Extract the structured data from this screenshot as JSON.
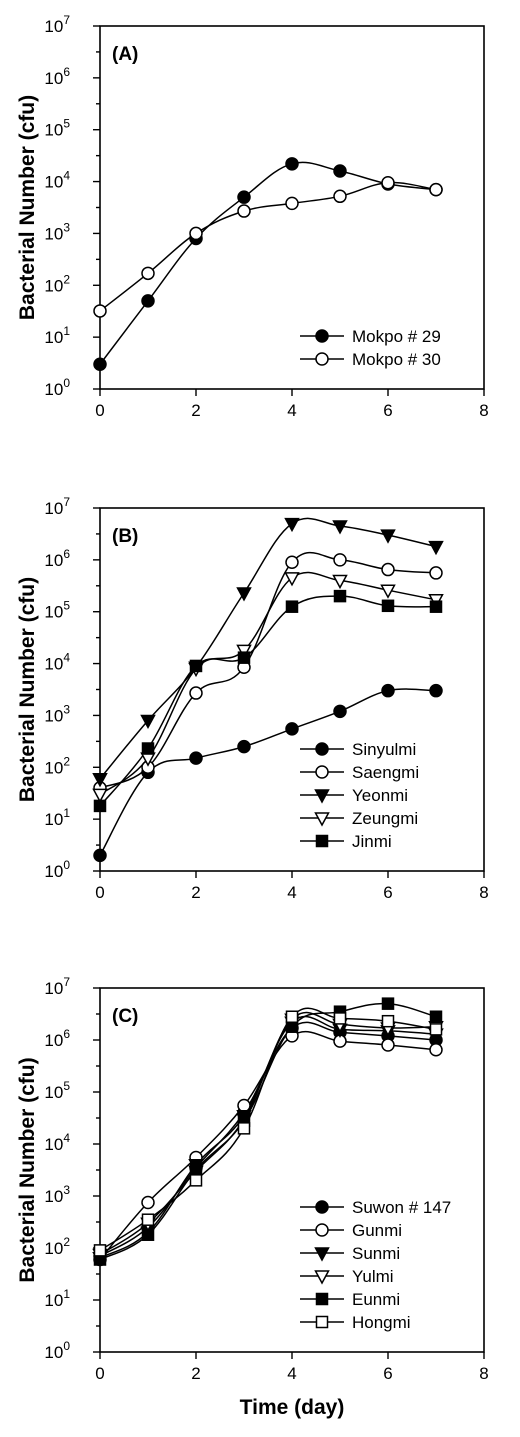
{
  "chart_data": [
    {
      "type": "line",
      "panel_label": "(A)",
      "ylabel": "Bacterial Number (cfu)",
      "xlabel": "",
      "y_scale": "log",
      "xlim": [
        0,
        8
      ],
      "ylim": [
        1,
        10000000
      ],
      "x_ticks": [
        "0",
        "2",
        "4",
        "6",
        "8"
      ],
      "y_tick_exponents": [
        "0",
        "1",
        "2",
        "3",
        "4",
        "5",
        "6",
        "7"
      ],
      "y_tick_base": "10",
      "x": [
        0,
        1,
        2,
        3,
        4,
        5,
        6,
        7
      ],
      "legend_position": "lower-right",
      "series": [
        {
          "name": "Mokpo # 29",
          "marker": "filled-circle",
          "values": [
            3,
            50,
            800,
            5000,
            22000,
            16000,
            9000,
            7000
          ]
        },
        {
          "name": "Mokpo # 30",
          "marker": "open-circle",
          "values": [
            32,
            170,
            1000,
            2700,
            3800,
            5200,
            9500,
            7000
          ]
        }
      ]
    },
    {
      "type": "line",
      "panel_label": "(B)",
      "ylabel": "Bacterial Number (cfu)",
      "xlabel": "",
      "y_scale": "log",
      "xlim": [
        0,
        8
      ],
      "ylim": [
        1,
        10000000
      ],
      "x_ticks": [
        "0",
        "2",
        "4",
        "6",
        "8"
      ],
      "y_tick_exponents": [
        "0",
        "1",
        "2",
        "3",
        "4",
        "5",
        "6",
        "7"
      ],
      "y_tick_base": "10",
      "x": [
        0,
        1,
        2,
        3,
        4,
        5,
        6,
        7
      ],
      "legend_position": "lower-right",
      "series": [
        {
          "name": "Sinyulmi",
          "marker": "filled-circle",
          "values": [
            2,
            80,
            150,
            250,
            550,
            1200,
            3000,
            3000
          ]
        },
        {
          "name": "Saengmi",
          "marker": "open-circle",
          "values": [
            40,
            100,
            2700,
            8500,
            900000,
            1000000,
            650000,
            560000
          ]
        },
        {
          "name": "Yeonmi",
          "marker": "filled-triangle-down",
          "values": [
            60,
            800,
            8500,
            230000,
            5000000,
            4500000,
            3000000,
            1800000
          ]
        },
        {
          "name": "Zeungmi",
          "marker": "open-triangle-down",
          "values": [
            30,
            150,
            8000,
            18000,
            450000,
            400000,
            260000,
            170000
          ]
        },
        {
          "name": "Jinmi",
          "marker": "filled-square",
          "values": [
            18,
            230,
            9000,
            13000,
            125000,
            200000,
            130000,
            125000
          ]
        }
      ]
    },
    {
      "type": "line",
      "panel_label": "(C)",
      "ylabel": "Bacterial Number (cfu)",
      "xlabel": "Time (day)",
      "y_scale": "log",
      "xlim": [
        0,
        8
      ],
      "ylim": [
        1,
        10000000
      ],
      "x_ticks": [
        "0",
        "2",
        "4",
        "6",
        "8"
      ],
      "y_tick_exponents": [
        "0",
        "1",
        "2",
        "3",
        "4",
        "5",
        "6",
        "7"
      ],
      "y_tick_base": "10",
      "x": [
        0,
        1,
        2,
        3,
        4,
        5,
        6,
        7
      ],
      "legend_position": "lower-right",
      "series": [
        {
          "name": "Suwon # 147",
          "marker": "filled-circle",
          "values": [
            70,
            250,
            3500,
            40000,
            1700000,
            1400000,
            1200000,
            1000000
          ]
        },
        {
          "name": "Gunmi",
          "marker": "open-circle",
          "values": [
            60,
            750,
            5500,
            55000,
            1200000,
            950000,
            800000,
            650000
          ]
        },
        {
          "name": "Sunmi",
          "marker": "filled-triangle-down",
          "values": [
            65,
            200,
            4000,
            35000,
            2200000,
            1600000,
            1500000,
            1300000
          ]
        },
        {
          "name": "Yulmi",
          "marker": "open-triangle-down",
          "values": [
            75,
            300,
            3000,
            30000,
            2500000,
            2000000,
            1700000,
            1800000
          ]
        },
        {
          "name": "Eunmi",
          "marker": "filled-square",
          "values": [
            60,
            180,
            3200,
            28000,
            1800000,
            3500000,
            5000000,
            2800000
          ]
        },
        {
          "name": "Hongmi",
          "marker": "open-square",
          "values": [
            90,
            350,
            2000,
            20000,
            2800000,
            2600000,
            2300000,
            1600000
          ]
        }
      ]
    }
  ]
}
